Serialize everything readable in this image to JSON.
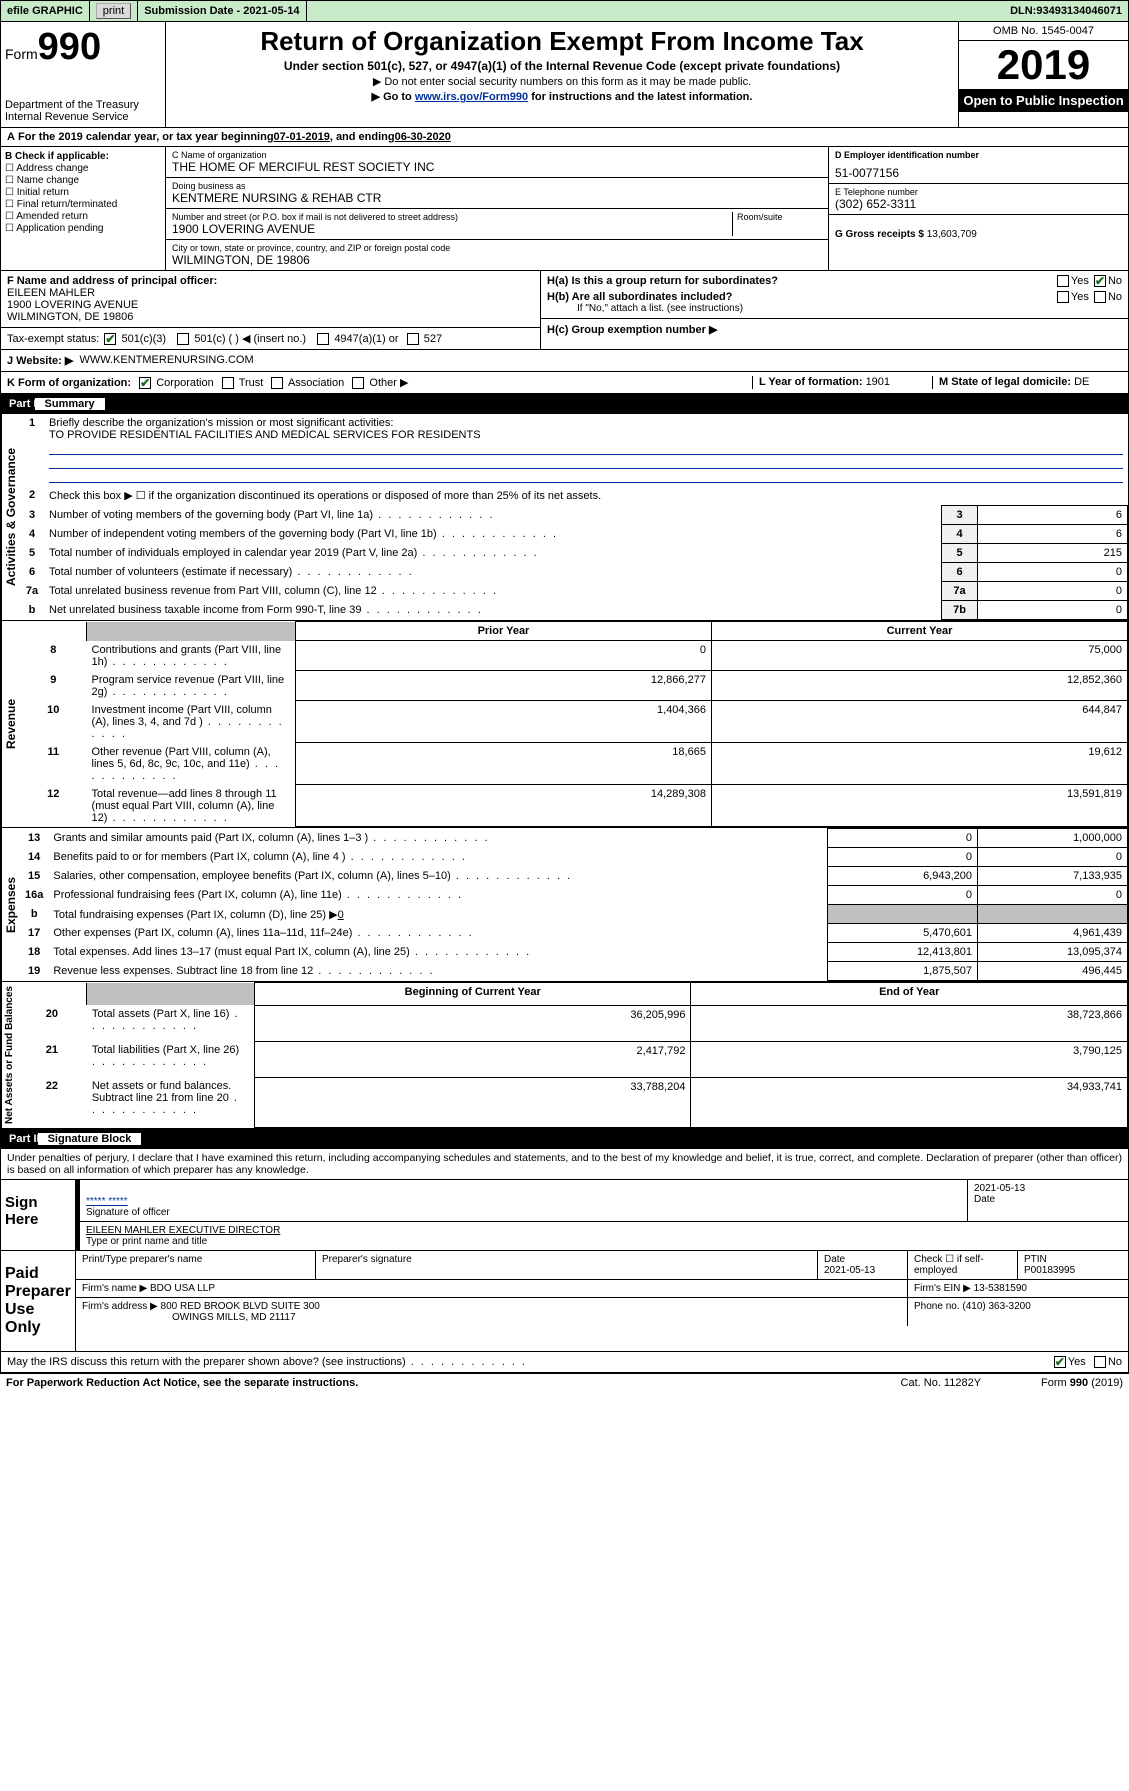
{
  "topbar": {
    "efile": "efile GRAPHIC",
    "print": "print",
    "subdate_label": "Submission Date - ",
    "subdate": "2021-05-14",
    "dln_label": "DLN: ",
    "dln": "93493134046071"
  },
  "header": {
    "form_prefix": "Form",
    "form_no": "990",
    "dept": "Department of the Treasury",
    "irs": "Internal Revenue Service",
    "title": "Return of Organization Exempt From Income Tax",
    "subtitle": "Under section 501(c), 527, or 4947(a)(1) of the Internal Revenue Code (except private foundations)",
    "inst1": "▶ Do not enter social security numbers on this form as it may be made public.",
    "inst2_pre": "▶ Go to ",
    "inst2_link": "www.irs.gov/Form990",
    "inst2_post": " for instructions and the latest information.",
    "omb": "OMB No. 1545-0047",
    "year": "2019",
    "otp": "Open to Public Inspection"
  },
  "periodA": {
    "text_pre": "For the 2019 calendar year, or tax year beginning ",
    "begin": "07-01-2019",
    "mid": " , and ending ",
    "end": "06-30-2020"
  },
  "boxB": {
    "label": "B Check if applicable:",
    "items": [
      "Address change",
      "Name change",
      "Initial return",
      "Final return/terminated",
      "Amended return",
      "Application pending"
    ]
  },
  "boxC": {
    "name_label": "C Name of organization",
    "name": "THE HOME OF MERCIFUL REST SOCIETY INC",
    "dba_label": "Doing business as",
    "dba": "KENTMERE NURSING & REHAB CTR",
    "addr_label": "Number and street (or P.O. box if mail is not delivered to street address)",
    "room_label": "Room/suite",
    "addr": "1900 LOVERING AVENUE",
    "city_label": "City or town, state or province, country, and ZIP or foreign postal code",
    "city": "WILMINGTON, DE  19806"
  },
  "boxD": {
    "label": "D Employer identification number",
    "val": "51-0077156"
  },
  "boxE": {
    "label": "E Telephone number",
    "val": "(302) 652-3311"
  },
  "boxG": {
    "label": "G Gross receipts $ ",
    "val": "13,603,709"
  },
  "boxF": {
    "label": "F  Name and address of principal officer:",
    "name": "EILEEN MAHLER",
    "addr1": "1900 LOVERING AVENUE",
    "addr2": "WILMINGTON, DE  19806"
  },
  "boxH": {
    "a": "H(a)  Is this a group return for subordinates?",
    "b": "H(b)  Are all subordinates included?",
    "b_note": "If \"No,\" attach a list. (see instructions)",
    "c": "H(c)  Group exemption number ▶",
    "yes": "Yes",
    "no": "No"
  },
  "boxI": {
    "label": "Tax-exempt status:",
    "o1": "501(c)(3)",
    "o2": "501(c) (   ) ◀ (insert no.)",
    "o3": "4947(a)(1) or",
    "o4": "527"
  },
  "boxJ": {
    "label": "J   Website: ▶",
    "val": "WWW.KENTMERENURSING.COM"
  },
  "boxK": {
    "label": "K Form of organization:",
    "opts": [
      "Corporation",
      "Trust",
      "Association",
      "Other ▶"
    ]
  },
  "boxL": {
    "label": "L Year of formation: ",
    "val": "1901"
  },
  "boxM": {
    "label": "M State of legal domicile: ",
    "val": "DE"
  },
  "part1": {
    "tag": "Part I",
    "title": "Summary"
  },
  "summary": {
    "sideA": "Activities & Governance",
    "sideR": "Revenue",
    "sideE": "Expenses",
    "sideN": "Net Assets or Fund Balances",
    "q1": "Briefly describe the organization's mission or most significant activities:",
    "q1v": "TO PROVIDE RESIDENTIAL FACILITIES AND MEDICAL SERVICES FOR RESIDENTS",
    "q2": "Check this box ▶ ☐  if the organization discontinued its operations or disposed of more than 25% of its net assets.",
    "rows_a": [
      {
        "n": "3",
        "t": "Number of voting members of the governing body (Part VI, line 1a)",
        "b": "3",
        "v": "6"
      },
      {
        "n": "4",
        "t": "Number of independent voting members of the governing body (Part VI, line 1b)",
        "b": "4",
        "v": "6"
      },
      {
        "n": "5",
        "t": "Total number of individuals employed in calendar year 2019 (Part V, line 2a)",
        "b": "5",
        "v": "215"
      },
      {
        "n": "6",
        "t": "Total number of volunteers (estimate if necessary)",
        "b": "6",
        "v": "0"
      },
      {
        "n": "7a",
        "t": "Total unrelated business revenue from Part VIII, column (C), line 12",
        "b": "7a",
        "v": "0"
      },
      {
        "n": "b",
        "t": "Net unrelated business taxable income from Form 990-T, line 39",
        "b": "7b",
        "v": "0"
      }
    ],
    "col_py": "Prior Year",
    "col_cy": "Current Year",
    "rows_r": [
      {
        "n": "8",
        "t": "Contributions and grants (Part VIII, line 1h)",
        "py": "0",
        "cy": "75,000"
      },
      {
        "n": "9",
        "t": "Program service revenue (Part VIII, line 2g)",
        "py": "12,866,277",
        "cy": "12,852,360"
      },
      {
        "n": "10",
        "t": "Investment income (Part VIII, column (A), lines 3, 4, and 7d )",
        "py": "1,404,366",
        "cy": "644,847"
      },
      {
        "n": "11",
        "t": "Other revenue (Part VIII, column (A), lines 5, 6d, 8c, 9c, 10c, and 11e)",
        "py": "18,665",
        "cy": "19,612"
      },
      {
        "n": "12",
        "t": "Total revenue—add lines 8 through 11 (must equal Part VIII, column (A), line 12)",
        "py": "14,289,308",
        "cy": "13,591,819"
      }
    ],
    "rows_e": [
      {
        "n": "13",
        "t": "Grants and similar amounts paid (Part IX, column (A), lines 1–3 )",
        "py": "0",
        "cy": "1,000,000"
      },
      {
        "n": "14",
        "t": "Benefits paid to or for members (Part IX, column (A), line 4 )",
        "py": "0",
        "cy": "0"
      },
      {
        "n": "15",
        "t": "Salaries, other compensation, employee benefits (Part IX, column (A), lines 5–10)",
        "py": "6,943,200",
        "cy": "7,133,935"
      },
      {
        "n": "16a",
        "t": "Professional fundraising fees (Part IX, column (A), line 11e)",
        "py": "0",
        "cy": "0"
      }
    ],
    "row16b": {
      "n": "b",
      "t": "Total fundraising expenses (Part IX, column (D), line 25) ▶",
      "v": "0"
    },
    "rows_e2": [
      {
        "n": "17",
        "t": "Other expenses (Part IX, column (A), lines 11a–11d, 11f–24e)",
        "py": "5,470,601",
        "cy": "4,961,439"
      },
      {
        "n": "18",
        "t": "Total expenses. Add lines 13–17 (must equal Part IX, column (A), line 25)",
        "py": "12,413,801",
        "cy": "13,095,374"
      },
      {
        "n": "19",
        "t": "Revenue less expenses. Subtract line 18 from line 12",
        "py": "1,875,507",
        "cy": "496,445"
      }
    ],
    "col_bcy": "Beginning of Current Year",
    "col_eoy": "End of Year",
    "rows_n": [
      {
        "n": "20",
        "t": "Total assets (Part X, line 16)",
        "py": "36,205,996",
        "cy": "38,723,866"
      },
      {
        "n": "21",
        "t": "Total liabilities (Part X, line 26)",
        "py": "2,417,792",
        "cy": "3,790,125"
      },
      {
        "n": "22",
        "t": "Net assets or fund balances. Subtract line 21 from line 20",
        "py": "33,788,204",
        "cy": "34,933,741"
      }
    ]
  },
  "part2": {
    "tag": "Part II",
    "title": "Signature Block"
  },
  "sig": {
    "perjury": "Under penalties of perjury, I declare that I have examined this return, including accompanying schedules and statements, and to the best of my knowledge and belief, it is true, correct, and complete. Declaration of preparer (other than officer) is based on all information of which preparer has any knowledge.",
    "sign_here": "Sign Here",
    "sig_officer": "Signature of officer",
    "date": "2021-05-13",
    "date_label": "Date",
    "name_title": "EILEEN MAHLER  EXECUTIVE DIRECTOR",
    "type_name": "Type or print name and title",
    "paid": "Paid Preparer Use Only",
    "p_name_label": "Print/Type preparer's name",
    "p_sig_label": "Preparer's signature",
    "p_date_label": "Date",
    "p_date": "2021-05-13",
    "p_check": "Check ☐ if self-employed",
    "ptin_label": "PTIN",
    "ptin": "P00183995",
    "firm_label": "Firm's name    ▶ ",
    "firm": "BDO USA LLP",
    "fein_label": "Firm's EIN ▶ ",
    "fein": "13-5381590",
    "faddr_label": "Firm's address ▶ ",
    "faddr1": "800 RED BROOK BLVD SUITE 300",
    "faddr2": "OWINGS MILLS, MD  21117",
    "phone_label": "Phone no. ",
    "phone": "(410) 363-3200",
    "discuss": "May the IRS discuss this return with the preparer shown above? (see instructions)",
    "yes": "Yes",
    "no": "No"
  },
  "footer": {
    "pra": "For Paperwork Reduction Act Notice, see the separate instructions.",
    "cat": "Cat. No. 11282Y",
    "form": "Form 990 (2019)"
  },
  "colors": {
    "greenbar": "#c8eac8",
    "link": "#003399",
    "check": "#1a6b1a"
  }
}
